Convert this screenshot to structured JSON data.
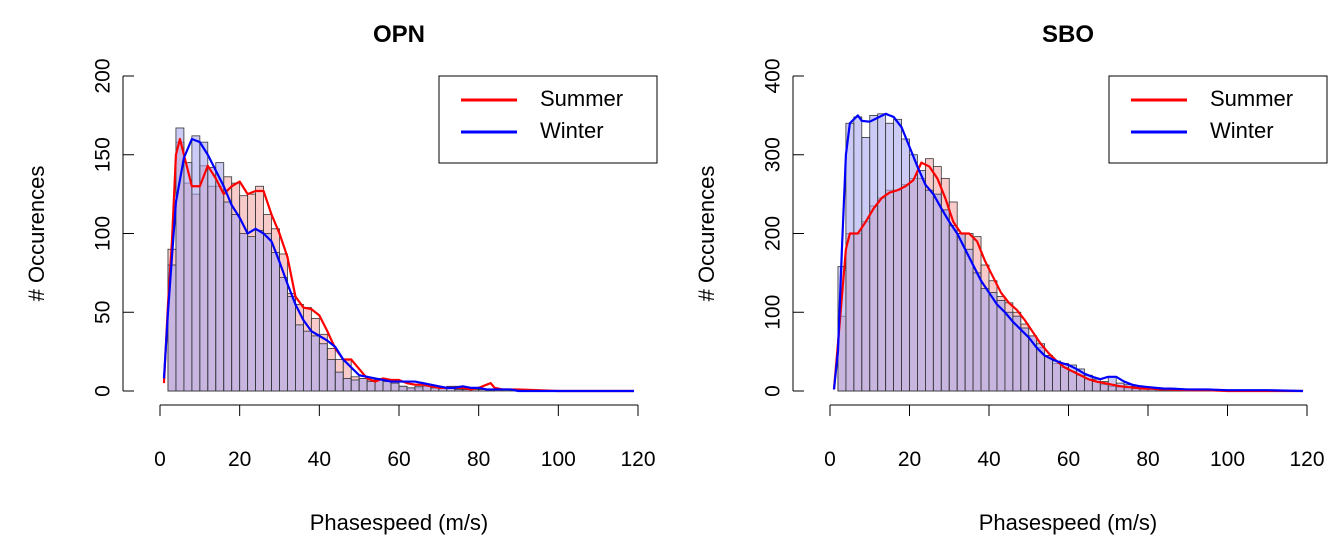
{
  "chart_data": [
    {
      "type": "histogram",
      "title": "OPN",
      "xlabel": "Phasespeed (m/s)",
      "ylabel": "# Occurences",
      "xlim": [
        0,
        120
      ],
      "ylim": [
        0,
        200
      ],
      "xticks": [
        0,
        20,
        40,
        60,
        80,
        100,
        120
      ],
      "yticks": [
        0,
        50,
        100,
        150,
        200
      ],
      "bin_width": 2,
      "legend_position": "top-right",
      "series": [
        {
          "name": "Summer",
          "color": "#ff0000",
          "fill": "#f4a6a6",
          "bins_start": 2,
          "values": [
            90,
            158,
            132,
            125,
            143,
            130,
            130,
            136,
            132,
            124,
            125,
            130,
            112,
            103,
            87,
            62,
            55,
            53,
            46,
            36,
            27,
            20,
            20,
            9,
            8,
            7,
            8,
            7,
            6,
            3,
            2,
            2,
            3,
            2,
            2,
            3,
            3,
            1,
            2,
            1,
            1,
            1,
            1,
            1,
            0,
            0,
            0,
            0,
            0,
            0,
            0,
            0,
            0,
            0,
            0,
            0,
            0,
            0,
            0
          ],
          "curve": [
            [
              1,
              5
            ],
            [
              2,
              55
            ],
            [
              3,
              95
            ],
            [
              4,
              150
            ],
            [
              5,
              160
            ],
            [
              6,
              150
            ],
            [
              8,
              130
            ],
            [
              10,
              130
            ],
            [
              12,
              143
            ],
            [
              14,
              135
            ],
            [
              16,
              125
            ],
            [
              18,
              130
            ],
            [
              20,
              133
            ],
            [
              22,
              125
            ],
            [
              24,
              127
            ],
            [
              26,
              127
            ],
            [
              28,
              112
            ],
            [
              30,
              100
            ],
            [
              32,
              85
            ],
            [
              34,
              60
            ],
            [
              36,
              53
            ],
            [
              38,
              52
            ],
            [
              40,
              48
            ],
            [
              42,
              38
            ],
            [
              44,
              27
            ],
            [
              46,
              20
            ],
            [
              48,
              20
            ],
            [
              50,
              14
            ],
            [
              52,
              8
            ],
            [
              54,
              6
            ],
            [
              56,
              8
            ],
            [
              58,
              7
            ],
            [
              60,
              7
            ],
            [
              62,
              5
            ],
            [
              64,
              4
            ],
            [
              66,
              4
            ],
            [
              68,
              3
            ],
            [
              70,
              2
            ],
            [
              72,
              2
            ],
            [
              74,
              2
            ],
            [
              76,
              2
            ],
            [
              78,
              1
            ],
            [
              80,
              2
            ],
            [
              82,
              4
            ],
            [
              83,
              5
            ],
            [
              84,
              2
            ],
            [
              86,
              1
            ],
            [
              88,
              1
            ],
            [
              90,
              1
            ],
            [
              100,
              0
            ],
            [
              119,
              0
            ]
          ]
        },
        {
          "name": "Winter",
          "color": "#0000ff",
          "fill": "#a8a8f0",
          "bins_start": 2,
          "values": [
            80,
            167,
            145,
            162,
            158,
            142,
            145,
            120,
            112,
            100,
            98,
            102,
            100,
            88,
            72,
            60,
            42,
            38,
            35,
            30,
            20,
            12,
            8,
            7,
            8,
            6,
            7,
            6,
            5,
            3,
            2,
            3,
            4,
            2,
            2,
            2,
            1,
            1,
            1,
            1,
            1,
            0,
            0,
            0,
            0,
            0,
            0,
            0,
            0,
            0,
            0,
            0,
            0,
            0,
            0,
            0,
            0,
            0,
            0
          ],
          "curve": [
            [
              1,
              8
            ],
            [
              2,
              50
            ],
            [
              4,
              120
            ],
            [
              6,
              148
            ],
            [
              8,
              160
            ],
            [
              10,
              158
            ],
            [
              12,
              150
            ],
            [
              14,
              140
            ],
            [
              16,
              130
            ],
            [
              18,
              118
            ],
            [
              20,
              110
            ],
            [
              22,
              100
            ],
            [
              24,
              103
            ],
            [
              26,
              100
            ],
            [
              28,
              95
            ],
            [
              30,
              82
            ],
            [
              32,
              68
            ],
            [
              34,
              55
            ],
            [
              36,
              45
            ],
            [
              38,
              38
            ],
            [
              40,
              35
            ],
            [
              42,
              32
            ],
            [
              44,
              28
            ],
            [
              46,
              20
            ],
            [
              48,
              15
            ],
            [
              50,
              10
            ],
            [
              52,
              9
            ],
            [
              54,
              8
            ],
            [
              56,
              7
            ],
            [
              58,
              6
            ],
            [
              60,
              6
            ],
            [
              62,
              6
            ],
            [
              64,
              6
            ],
            [
              66,
              5
            ],
            [
              68,
              4
            ],
            [
              70,
              3
            ],
            [
              72,
              2
            ],
            [
              74,
              2
            ],
            [
              76,
              3
            ],
            [
              78,
              2
            ],
            [
              80,
              2
            ],
            [
              82,
              1
            ],
            [
              84,
              1
            ],
            [
              86,
              1
            ],
            [
              88,
              1
            ],
            [
              90,
              0
            ],
            [
              100,
              0
            ],
            [
              119,
              0
            ]
          ]
        }
      ]
    },
    {
      "type": "histogram",
      "title": "SBO",
      "xlabel": "Phasespeed (m/s)",
      "ylabel": "# Occurences",
      "xlim": [
        0,
        120
      ],
      "ylim": [
        0,
        400
      ],
      "xticks": [
        0,
        20,
        40,
        60,
        80,
        100,
        120
      ],
      "yticks": [
        0,
        100,
        200,
        300,
        400
      ],
      "bin_width": 2,
      "legend_position": "top-right",
      "series": [
        {
          "name": "Summer",
          "color": "#ff0000",
          "fill": "#f4a6a6",
          "bins_start": 2,
          "values": [
            95,
            200,
            200,
            215,
            235,
            245,
            255,
            255,
            262,
            270,
            270,
            295,
            285,
            270,
            240,
            200,
            200,
            196,
            160,
            140,
            120,
            112,
            100,
            85,
            70,
            55,
            45,
            35,
            30,
            25,
            20,
            15,
            12,
            8,
            6,
            5,
            4,
            3,
            3,
            2,
            2,
            2,
            2,
            1,
            1,
            1,
            1,
            1,
            1,
            1,
            1,
            0,
            0,
            0,
            0,
            0,
            0,
            0,
            0
          ],
          "curve": [
            [
              1,
              2
            ],
            [
              2,
              60
            ],
            [
              3,
              120
            ],
            [
              4,
              180
            ],
            [
              5,
              200
            ],
            [
              7,
              200
            ],
            [
              9,
              215
            ],
            [
              11,
              232
            ],
            [
              13,
              245
            ],
            [
              15,
              252
            ],
            [
              17,
              255
            ],
            [
              19,
              260
            ],
            [
              21,
              268
            ],
            [
              23,
              290
            ],
            [
              25,
              285
            ],
            [
              27,
              270
            ],
            [
              29,
              245
            ],
            [
              31,
              215
            ],
            [
              33,
              200
            ],
            [
              35,
              200
            ],
            [
              37,
              190
            ],
            [
              39,
              165
            ],
            [
              41,
              145
            ],
            [
              43,
              125
            ],
            [
              45,
              112
            ],
            [
              47,
              103
            ],
            [
              49,
              90
            ],
            [
              51,
              75
            ],
            [
              53,
              60
            ],
            [
              55,
              48
            ],
            [
              57,
              38
            ],
            [
              59,
              30
            ],
            [
              61,
              25
            ],
            [
              63,
              20
            ],
            [
              65,
              15
            ],
            [
              67,
              12
            ],
            [
              69,
              10
            ],
            [
              71,
              8
            ],
            [
              73,
              6
            ],
            [
              75,
              5
            ],
            [
              77,
              4
            ],
            [
              79,
              3
            ],
            [
              81,
              3
            ],
            [
              83,
              2
            ],
            [
              85,
              2
            ],
            [
              90,
              1
            ],
            [
              95,
              1
            ],
            [
              100,
              0
            ],
            [
              119,
              0
            ]
          ]
        },
        {
          "name": "Winter",
          "color": "#0000ff",
          "fill": "#a8a8f0",
          "bins_start": 2,
          "values": [
            158,
            340,
            348,
            322,
            350,
            352,
            340,
            345,
            320,
            300,
            280,
            255,
            250,
            230,
            210,
            200,
            180,
            150,
            130,
            125,
            115,
            100,
            95,
            80,
            70,
            60,
            45,
            38,
            35,
            33,
            28,
            20,
            15,
            12,
            18,
            10,
            8,
            6,
            5,
            4,
            3,
            3,
            2,
            2,
            2,
            2,
            2,
            1,
            1,
            1,
            1,
            1,
            1,
            1,
            0,
            0,
            0,
            0,
            0
          ],
          "curve": [
            [
              1,
              2
            ],
            [
              2,
              50
            ],
            [
              3,
              180
            ],
            [
              4,
              300
            ],
            [
              5,
              340
            ],
            [
              6,
              345
            ],
            [
              7,
              350
            ],
            [
              8,
              343
            ],
            [
              10,
              342
            ],
            [
              12,
              347
            ],
            [
              14,
              352
            ],
            [
              16,
              348
            ],
            [
              18,
              335
            ],
            [
              20,
              310
            ],
            [
              22,
              285
            ],
            [
              24,
              262
            ],
            [
              26,
              250
            ],
            [
              28,
              232
            ],
            [
              30,
              215
            ],
            [
              32,
              200
            ],
            [
              34,
              180
            ],
            [
              36,
              160
            ],
            [
              38,
              140
            ],
            [
              40,
              125
            ],
            [
              42,
              110
            ],
            [
              44,
              100
            ],
            [
              46,
              88
            ],
            [
              48,
              78
            ],
            [
              50,
              68
            ],
            [
              52,
              55
            ],
            [
              54,
              45
            ],
            [
              56,
              40
            ],
            [
              58,
              36
            ],
            [
              60,
              33
            ],
            [
              62,
              28
            ],
            [
              64,
              22
            ],
            [
              66,
              18
            ],
            [
              68,
              15
            ],
            [
              70,
              18
            ],
            [
              72,
              18
            ],
            [
              74,
              12
            ],
            [
              76,
              8
            ],
            [
              78,
              6
            ],
            [
              80,
              5
            ],
            [
              82,
              4
            ],
            [
              84,
              3
            ],
            [
              86,
              3
            ],
            [
              90,
              2
            ],
            [
              95,
              2
            ],
            [
              100,
              1
            ],
            [
              110,
              1
            ],
            [
              119,
              0
            ]
          ]
        }
      ]
    }
  ]
}
